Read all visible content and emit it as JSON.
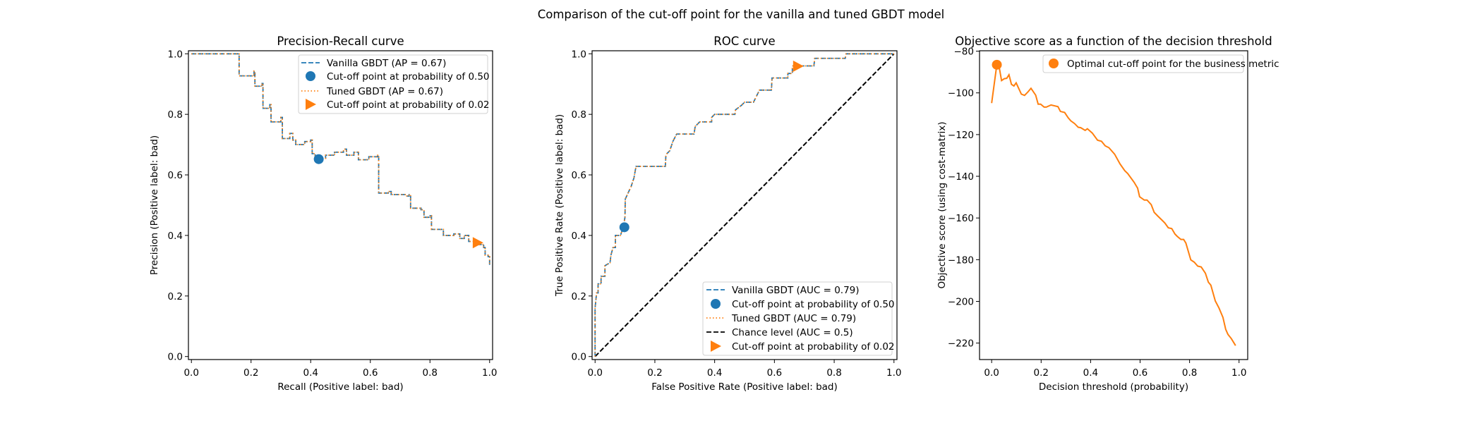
{
  "suptitle": "Comparison of the cut-off point for the vanilla and tuned GBDT model",
  "colors": {
    "vanilla": "#1f77b4",
    "tuned": "#ff7f0e",
    "chance": "#000000"
  },
  "chart_data": [
    {
      "type": "line",
      "title": "Precision-Recall curve",
      "xlabel": "Recall (Positive label: bad)",
      "ylabel": "Precision (Positive label: bad)",
      "xlim": [
        -0.01,
        1.01
      ],
      "ylim": [
        -0.01,
        1.01
      ],
      "xticks": [
        "0.0",
        "0.2",
        "0.4",
        "0.6",
        "0.8",
        "1.0"
      ],
      "yticks": [
        "0.0",
        "0.2",
        "0.4",
        "0.6",
        "0.8",
        "1.0"
      ],
      "grid": false,
      "legend_position": "upper right",
      "drawstyle": "steps-post",
      "curve": [
        [
          0,
          1
        ],
        [
          0.16,
          0.927
        ],
        [
          0.21,
          0.943
        ],
        [
          0.213,
          0.893
        ],
        [
          0.237,
          0.902
        ],
        [
          0.24,
          0.82
        ],
        [
          0.263,
          0.832
        ],
        [
          0.267,
          0.775
        ],
        [
          0.3,
          0.79
        ],
        [
          0.305,
          0.72
        ],
        [
          0.33,
          0.737
        ],
        [
          0.34,
          0.715
        ],
        [
          0.35,
          0.7
        ],
        [
          0.365,
          0.7
        ],
        [
          0.38,
          0.71
        ],
        [
          0.4,
          0.715
        ],
        [
          0.405,
          0.67
        ],
        [
          0.415,
          0.655
        ],
        [
          0.45,
          0.665
        ],
        [
          0.48,
          0.675
        ],
        [
          0.51,
          0.685
        ],
        [
          0.52,
          0.665
        ],
        [
          0.545,
          0.675
        ],
        [
          0.56,
          0.65
        ],
        [
          0.595,
          0.66
        ],
        [
          0.625,
          0.665
        ],
        [
          0.628,
          0.54
        ],
        [
          0.66,
          0.545
        ],
        [
          0.67,
          0.535
        ],
        [
          0.72,
          0.53
        ],
        [
          0.73,
          0.535
        ],
        [
          0.735,
          0.49
        ],
        [
          0.77,
          0.485
        ],
        [
          0.78,
          0.46
        ],
        [
          0.8,
          0.465
        ],
        [
          0.805,
          0.42
        ],
        [
          0.84,
          0.42
        ],
        [
          0.845,
          0.4
        ],
        [
          0.88,
          0.405
        ],
        [
          0.9,
          0.39
        ],
        [
          0.915,
          0.4
        ],
        [
          0.93,
          0.38
        ],
        [
          0.95,
          0.37
        ],
        [
          0.98,
          0.36
        ],
        [
          0.985,
          0.335
        ],
        [
          0.995,
          0.33
        ],
        [
          1.0,
          0.3
        ]
      ],
      "series": [
        {
          "name": "Vanilla GBDT (AP = 0.67)",
          "style": "dashed",
          "color": "#1f77b4"
        },
        {
          "name": "Tuned GBDT (AP = 0.67)",
          "style": "dotted",
          "color": "#ff7f0e"
        }
      ],
      "markers": [
        {
          "name": "Cut-off point at probability of 0.50",
          "shape": "circle",
          "color": "#1f77b4",
          "x": 0.427,
          "y": 0.652
        },
        {
          "name": "Cut-off point at probability of 0.02",
          "shape": "triangle-right",
          "color": "#ff7f0e",
          "x": 0.96,
          "y": 0.376
        }
      ],
      "legend": [
        "Vanilla GBDT (AP = 0.67)",
        "Cut-off point at probability of 0.50",
        "Tuned GBDT (AP = 0.67)",
        "Cut-off point at probability of 0.02"
      ]
    },
    {
      "type": "line",
      "title": "ROC curve",
      "xlabel": "False Positive Rate (Positive label: bad)",
      "ylabel": "True Positive Rate (Positive label: bad)",
      "xlim": [
        -0.01,
        1.01
      ],
      "ylim": [
        -0.01,
        1.01
      ],
      "xticks": [
        "0.0",
        "0.2",
        "0.4",
        "0.6",
        "0.8",
        "1.0"
      ],
      "yticks": [
        "0.0",
        "0.2",
        "0.4",
        "0.6",
        "0.8",
        "1.0"
      ],
      "grid": false,
      "legend_position": "lower right",
      "drawstyle": "line",
      "curve": [
        [
          0,
          0
        ],
        [
          0,
          0.16
        ],
        [
          0.005,
          0.21
        ],
        [
          0.01,
          0.21
        ],
        [
          0.01,
          0.24
        ],
        [
          0.02,
          0.24
        ],
        [
          0.02,
          0.265
        ],
        [
          0.033,
          0.265
        ],
        [
          0.033,
          0.3
        ],
        [
          0.05,
          0.31
        ],
        [
          0.053,
          0.335
        ],
        [
          0.06,
          0.36
        ],
        [
          0.068,
          0.36
        ],
        [
          0.068,
          0.4
        ],
        [
          0.085,
          0.4
        ],
        [
          0.095,
          0.43
        ],
        [
          0.1,
          0.46
        ],
        [
          0.101,
          0.52
        ],
        [
          0.115,
          0.55
        ],
        [
          0.12,
          0.56
        ],
        [
          0.13,
          0.59
        ],
        [
          0.137,
          0.628
        ],
        [
          0.235,
          0.628
        ],
        [
          0.237,
          0.667
        ],
        [
          0.25,
          0.68
        ],
        [
          0.26,
          0.71
        ],
        [
          0.273,
          0.735
        ],
        [
          0.331,
          0.735
        ],
        [
          0.335,
          0.76
        ],
        [
          0.35,
          0.775
        ],
        [
          0.39,
          0.775
        ],
        [
          0.39,
          0.79
        ],
        [
          0.4,
          0.8
        ],
        [
          0.468,
          0.8
        ],
        [
          0.47,
          0.815
        ],
        [
          0.49,
          0.83
        ],
        [
          0.5,
          0.84
        ],
        [
          0.53,
          0.84
        ],
        [
          0.55,
          0.88
        ],
        [
          0.59,
          0.88
        ],
        [
          0.592,
          0.92
        ],
        [
          0.645,
          0.92
        ],
        [
          0.645,
          0.935
        ],
        [
          0.66,
          0.935
        ],
        [
          0.66,
          0.96
        ],
        [
          0.732,
          0.96
        ],
        [
          0.735,
          0.985
        ],
        [
          0.837,
          0.985
        ],
        [
          0.84,
          1.0
        ],
        [
          1.0,
          1.0
        ]
      ],
      "chance": [
        [
          0,
          0
        ],
        [
          1,
          1
        ]
      ],
      "series": [
        {
          "name": "Vanilla GBDT (AUC = 0.79)",
          "style": "dashed",
          "color": "#1f77b4"
        },
        {
          "name": "Tuned GBDT (AUC = 0.79)",
          "style": "dotted",
          "color": "#ff7f0e"
        },
        {
          "name": "Chance level (AUC = 0.5)",
          "style": "dashed",
          "color": "#000000"
        }
      ],
      "markers": [
        {
          "name": "Cut-off point at probability of 0.50",
          "shape": "circle",
          "color": "#1f77b4",
          "x": 0.098,
          "y": 0.427
        },
        {
          "name": "Cut-off point at probability of 0.02",
          "shape": "triangle-right",
          "color": "#ff7f0e",
          "x": 0.679,
          "y": 0.959
        }
      ],
      "legend": [
        "Vanilla GBDT (AUC = 0.79)",
        "Cut-off point at probability of 0.50",
        "Tuned GBDT (AUC = 0.79)",
        "Chance level (AUC = 0.5)",
        "Cut-off point at probability of 0.02"
      ]
    },
    {
      "type": "line",
      "title": "Objective score as a function of the decision threshold",
      "xlabel": "Decision threshold (probability)",
      "ylabel": "Objective score (using cost-matrix)",
      "xlim": [
        -0.049,
        1.035
      ],
      "ylim": [
        -227.9,
        -79.8
      ],
      "xticks": [
        "0.0",
        "0.2",
        "0.4",
        "0.6",
        "0.8",
        "1.0"
      ],
      "yticks": [
        "−80",
        "−100",
        "−120",
        "−140",
        "−160",
        "−180",
        "−200",
        "−220"
      ],
      "grid": false,
      "legend_position": "upper right",
      "drawstyle": "line",
      "curve": [
        [
          0,
          -104.9
        ],
        [
          0.021,
          -86.4
        ],
        [
          0.031,
          -88
        ],
        [
          0.04,
          -94.1
        ],
        [
          0.051,
          -93.2
        ],
        [
          0.061,
          -93
        ],
        [
          0.07,
          -91.3
        ],
        [
          0.08,
          -95.9
        ],
        [
          0.09,
          -96.7
        ],
        [
          0.099,
          -95.2
        ],
        [
          0.12,
          -100.6
        ],
        [
          0.133,
          -101.2
        ],
        [
          0.147,
          -99.5
        ],
        [
          0.159,
          -97.8
        ],
        [
          0.178,
          -101.1
        ],
        [
          0.188,
          -105.4
        ],
        [
          0.198,
          -105.4
        ],
        [
          0.212,
          -106.8
        ],
        [
          0.221,
          -106.8
        ],
        [
          0.24,
          -105.8
        ],
        [
          0.268,
          -106.6
        ],
        [
          0.278,
          -108.9
        ],
        [
          0.295,
          -109.4
        ],
        [
          0.309,
          -111.9
        ],
        [
          0.32,
          -113.4
        ],
        [
          0.335,
          -114.7
        ],
        [
          0.35,
          -116.5
        ],
        [
          0.36,
          -116.7
        ],
        [
          0.378,
          -118
        ],
        [
          0.387,
          -117.2
        ],
        [
          0.407,
          -119.3
        ],
        [
          0.428,
          -122.7
        ],
        [
          0.444,
          -123.2
        ],
        [
          0.459,
          -125.4
        ],
        [
          0.474,
          -126.3
        ],
        [
          0.497,
          -129.4
        ],
        [
          0.519,
          -134.1
        ],
        [
          0.538,
          -137.3
        ],
        [
          0.55,
          -138.7
        ],
        [
          0.576,
          -142.9
        ],
        [
          0.59,
          -145.7
        ],
        [
          0.598,
          -149.8
        ],
        [
          0.617,
          -151.4
        ],
        [
          0.628,
          -151.4
        ],
        [
          0.645,
          -153.6
        ],
        [
          0.657,
          -157.3
        ],
        [
          0.671,
          -159
        ],
        [
          0.69,
          -161.2
        ],
        [
          0.7,
          -162.4
        ],
        [
          0.714,
          -164.7
        ],
        [
          0.728,
          -165.1
        ],
        [
          0.741,
          -167.7
        ],
        [
          0.75,
          -168.8
        ],
        [
          0.765,
          -170.3
        ],
        [
          0.776,
          -170.3
        ],
        [
          0.785,
          -172
        ],
        [
          0.805,
          -180.1
        ],
        [
          0.819,
          -181.2
        ],
        [
          0.833,
          -183.1
        ],
        [
          0.847,
          -183.5
        ],
        [
          0.864,
          -186.5
        ],
        [
          0.876,
          -190.8
        ],
        [
          0.886,
          -192.2
        ],
        [
          0.904,
          -199.8
        ],
        [
          0.919,
          -203.2
        ],
        [
          0.935,
          -207.7
        ],
        [
          0.946,
          -213.4
        ],
        [
          0.955,
          -215.8
        ],
        [
          0.969,
          -217.9
        ],
        [
          0.986,
          -221.2
        ]
      ],
      "series": [
        {
          "style": "solid",
          "color": "#ff7f0e"
        }
      ],
      "markers": [
        {
          "name": "Optimal cut-off point for the business metric",
          "shape": "circle",
          "color": "#ff7f0e",
          "x": 0.021,
          "y": -86.5
        }
      ],
      "legend": [
        "Optimal cut-off point for the business metric"
      ]
    }
  ]
}
